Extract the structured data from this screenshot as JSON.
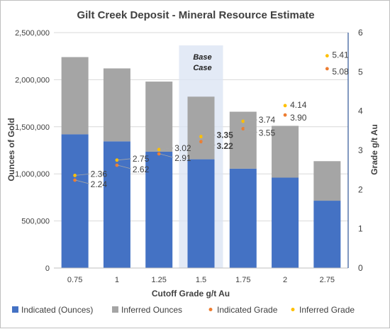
{
  "chart_data": {
    "type": "bar",
    "title": "Gilt Creek Deposit - Mineral Resource Estimate",
    "xlabel": "Cutoff Grade g/t Au",
    "ylabel": "Ounces of Gold",
    "y2label": "Grade g/t Au",
    "categories": [
      "0.75",
      "1",
      "1.25",
      "1.5",
      "1.75",
      "2",
      "2.75"
    ],
    "ylim": [
      0,
      2500000
    ],
    "y_ticks": [
      "0",
      "500,000",
      "1,000,000",
      "1,500,000",
      "2,000,000",
      "2,500,000"
    ],
    "y2lim": [
      0,
      6
    ],
    "y2_ticks": [
      "0",
      "1",
      "2",
      "3",
      "4",
      "5",
      "6"
    ],
    "stacked": true,
    "grid": true,
    "legend_position": "bottom",
    "series": [
      {
        "name": "Indicated (Ounces)",
        "kind": "bar",
        "axis": "left",
        "color": "#4472C4",
        "values": [
          1420000,
          1345000,
          1235000,
          1155000,
          1055000,
          960000,
          715000
        ]
      },
      {
        "name": "Inferred Ounces",
        "kind": "bar",
        "axis": "left",
        "color": "#A5A5A5",
        "values": [
          820000,
          775000,
          745000,
          665000,
          605000,
          550000,
          420000
        ]
      },
      {
        "name": "Indicated Grade",
        "kind": "scatter",
        "axis": "right",
        "color": "#ED7D31",
        "values": [
          2.24,
          2.62,
          2.91,
          3.22,
          3.55,
          3.9,
          5.08
        ],
        "labels": [
          "2.24",
          "2.62",
          "2.91",
          "3.22",
          "3.55",
          "3.90",
          "5.08"
        ]
      },
      {
        "name": "Inferred Grade",
        "kind": "scatter",
        "axis": "right",
        "color": "#FFC000",
        "values": [
          2.36,
          2.75,
          3.02,
          3.35,
          3.74,
          4.14,
          5.41
        ],
        "labels": [
          "2.36",
          "2.75",
          "3.02",
          "3.35",
          "3.74",
          "4.14",
          "5.41"
        ]
      }
    ],
    "annotations": [
      {
        "text_lines": [
          "Base",
          "Case"
        ],
        "category": "1.5",
        "shaded": true
      }
    ]
  }
}
